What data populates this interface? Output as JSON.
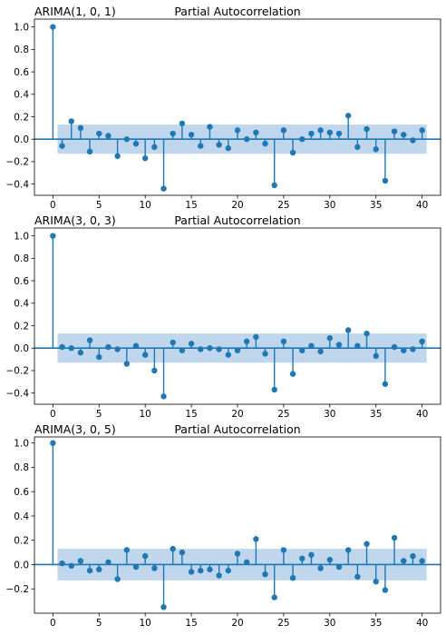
{
  "chart_data": [
    {
      "type": "stem",
      "title": "Partial Autocorrelation",
      "subtitle": "ARIMA(1, 0, 1)",
      "xlabel": "",
      "ylabel": "",
      "xlim": [
        -2,
        42
      ],
      "ylim": [
        -0.5,
        1.07
      ],
      "xticks": [
        0,
        5,
        10,
        15,
        20,
        25,
        30,
        35,
        40
      ],
      "xtick_labels": [
        "0",
        "5",
        "10",
        "15",
        "20",
        "25",
        "30",
        "35",
        "40"
      ],
      "yticks": [
        -0.4,
        -0.2,
        0.0,
        0.2,
        0.4,
        0.6,
        0.8,
        1.0
      ],
      "ytick_labels": [
        "−0.4",
        "−0.2",
        "0.0",
        "0.2",
        "0.4",
        "0.6",
        "0.8",
        "1.0"
      ],
      "confidence_band": [
        -0.13,
        0.13
      ],
      "lags": [
        0,
        1,
        2,
        3,
        4,
        5,
        6,
        7,
        8,
        9,
        10,
        11,
        12,
        13,
        14,
        15,
        16,
        17,
        18,
        19,
        20,
        21,
        22,
        23,
        24,
        25,
        26,
        27,
        28,
        29,
        30,
        31,
        32,
        33,
        34,
        35,
        36,
        37,
        38,
        39,
        40
      ],
      "values": [
        1.0,
        -0.06,
        0.16,
        0.1,
        -0.11,
        0.05,
        0.03,
        -0.15,
        0.0,
        -0.04,
        -0.17,
        -0.07,
        -0.44,
        0.05,
        0.14,
        0.04,
        -0.06,
        0.11,
        -0.05,
        -0.08,
        0.08,
        0.0,
        0.06,
        -0.04,
        -0.41,
        0.08,
        -0.12,
        0.0,
        0.05,
        0.08,
        0.06,
        0.05,
        0.21,
        -0.07,
        0.09,
        -0.09,
        -0.37,
        0.07,
        0.04,
        -0.01,
        0.08
      ]
    },
    {
      "type": "stem",
      "title": "Partial Autocorrelation",
      "subtitle": "ARIMA(3, 0, 3)",
      "xlabel": "",
      "ylabel": "",
      "xlim": [
        -2,
        42
      ],
      "ylim": [
        -0.5,
        1.07
      ],
      "xticks": [
        0,
        5,
        10,
        15,
        20,
        25,
        30,
        35,
        40
      ],
      "xtick_labels": [
        "0",
        "5",
        "10",
        "15",
        "20",
        "25",
        "30",
        "35",
        "40"
      ],
      "yticks": [
        -0.4,
        -0.2,
        0.0,
        0.2,
        0.4,
        0.6,
        0.8,
        1.0
      ],
      "ytick_labels": [
        "−0.4",
        "−0.2",
        "0.0",
        "0.2",
        "0.4",
        "0.6",
        "0.8",
        "1.0"
      ],
      "confidence_band": [
        -0.13,
        0.13
      ],
      "lags": [
        0,
        1,
        2,
        3,
        4,
        5,
        6,
        7,
        8,
        9,
        10,
        11,
        12,
        13,
        14,
        15,
        16,
        17,
        18,
        19,
        20,
        21,
        22,
        23,
        24,
        25,
        26,
        27,
        28,
        29,
        30,
        31,
        32,
        33,
        34,
        35,
        36,
        37,
        38,
        39,
        40
      ],
      "values": [
        1.0,
        0.01,
        0.0,
        -0.04,
        0.07,
        -0.08,
        0.01,
        -0.01,
        -0.14,
        0.02,
        -0.06,
        -0.2,
        -0.43,
        0.05,
        -0.02,
        0.04,
        -0.01,
        0.0,
        -0.01,
        -0.06,
        -0.02,
        0.06,
        0.1,
        -0.05,
        -0.37,
        0.06,
        -0.23,
        -0.02,
        0.02,
        -0.03,
        0.09,
        0.03,
        0.16,
        0.02,
        0.13,
        -0.07,
        -0.32,
        0.01,
        -0.02,
        -0.01,
        0.06
      ]
    },
    {
      "type": "stem",
      "title": "Partial Autocorrelation",
      "subtitle": "ARIMA(3, 0, 5)",
      "xlabel": "",
      "ylabel": "",
      "xlim": [
        -2,
        42
      ],
      "ylim": [
        -0.4,
        1.05
      ],
      "xticks": [
        0,
        5,
        10,
        15,
        20,
        25,
        30,
        35,
        40
      ],
      "xtick_labels": [
        "0",
        "5",
        "10",
        "15",
        "20",
        "25",
        "30",
        "35",
        "40"
      ],
      "yticks": [
        -0.2,
        0.0,
        0.2,
        0.4,
        0.6,
        0.8,
        1.0
      ],
      "ytick_labels": [
        "−0.2",
        "0.0",
        "0.2",
        "0.4",
        "0.6",
        "0.8",
        "1.0"
      ],
      "confidence_band": [
        -0.13,
        0.13
      ],
      "lags": [
        0,
        1,
        2,
        3,
        4,
        5,
        6,
        7,
        8,
        9,
        10,
        11,
        12,
        13,
        14,
        15,
        16,
        17,
        18,
        19,
        20,
        21,
        22,
        23,
        24,
        25,
        26,
        27,
        28,
        29,
        30,
        31,
        32,
        33,
        34,
        35,
        36,
        37,
        38,
        39,
        40
      ],
      "values": [
        1.0,
        0.01,
        -0.01,
        0.03,
        -0.05,
        -0.04,
        0.02,
        -0.12,
        0.12,
        -0.02,
        0.07,
        -0.03,
        -0.35,
        0.13,
        0.1,
        -0.06,
        -0.05,
        -0.04,
        -0.09,
        -0.05,
        0.09,
        0.02,
        0.21,
        -0.08,
        -0.27,
        0.12,
        -0.11,
        0.05,
        0.08,
        -0.03,
        0.04,
        -0.02,
        0.12,
        -0.1,
        0.17,
        -0.14,
        -0.21,
        0.22,
        0.03,
        0.07,
        0.03
      ]
    }
  ],
  "colors": {
    "stem": "#1f77b4",
    "marker": "#1f77b4",
    "band": "#a9c8e6",
    "axes": "#000000"
  }
}
